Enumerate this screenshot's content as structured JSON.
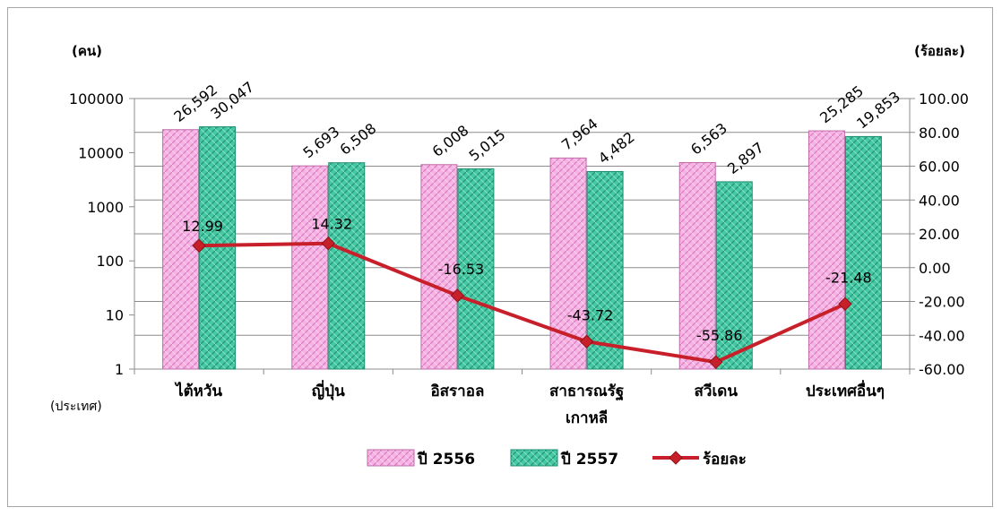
{
  "chart_data": {
    "type": "bar",
    "categories": [
      "ไต้หวัน",
      "ญี่ปุ่น",
      "อิสราอล",
      "สาธารณรัฐ\nเกาหลี",
      "สวีเดน",
      "ประเทศอื่นๆ"
    ],
    "left_axis": {
      "unit": "(คน)",
      "scale": "log",
      "ticks": [
        "1",
        "10",
        "100",
        "1000",
        "10000",
        "100000"
      ],
      "range": [
        1,
        100000
      ]
    },
    "right_axis": {
      "unit": "(ร้อยละ)",
      "ticks": [
        "-60.00",
        "-40.00",
        "-20.00",
        "0.00",
        "20.00",
        "40.00",
        "60.00",
        "80.00",
        "100.00"
      ],
      "range": [
        -60,
        100
      ]
    },
    "xlabel": "(ประเทศ)",
    "series": [
      {
        "name": "ปี 2556",
        "axis": "left",
        "color": "#f3a6dd",
        "values": [
          26592,
          5693,
          6008,
          7964,
          6563,
          25285
        ],
        "labels": [
          "26,592",
          "5,693",
          "6,008",
          "7,964",
          "6,563",
          "25,285"
        ]
      },
      {
        "name": "ปี 2557",
        "axis": "left",
        "color": "#3dbf9a",
        "values": [
          30047,
          6508,
          5015,
          4482,
          2897,
          19853
        ],
        "labels": [
          "30,047",
          "6,508",
          "5,015",
          "4,482",
          "2,897",
          "19,853"
        ]
      },
      {
        "name": "ร้อยละ",
        "axis": "right",
        "type": "line",
        "color": "#c8202a",
        "values": [
          12.99,
          14.32,
          -16.53,
          -43.72,
          -55.86,
          -21.48
        ],
        "labels": [
          "12.99",
          "14.32",
          "-16.53",
          "-43.72",
          "-55.86",
          "-21.48"
        ]
      }
    ],
    "grid": true,
    "legend": "bottom"
  }
}
